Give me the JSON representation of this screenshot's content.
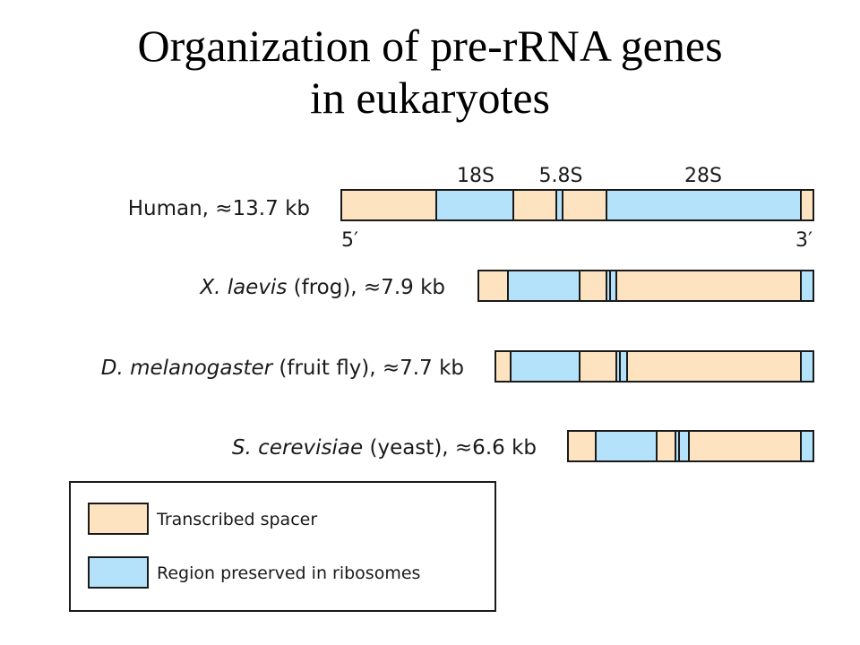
{
  "title": {
    "line1": "Organization of pre-rRNA genes",
    "line2": "in eukaryotes"
  },
  "headers": {
    "h18s": "18S",
    "h58s": "5.8S",
    "h28s": "28S"
  },
  "ends": {
    "five": "5′",
    "three": "3′"
  },
  "colors": {
    "spacer": "#fde3bf",
    "preserved": "#b5e2fb",
    "stroke": "#1a1a1a"
  },
  "genes": [
    {
      "species": "",
      "label_rest": "Human, ≈13.7 kb",
      "segments": [
        "spacer",
        "preserved",
        "spacer",
        "preserved",
        "spacer",
        "preserved",
        "spacer"
      ]
    },
    {
      "species": "X. laevis",
      "label_rest": " (frog), ≈7.9 kb",
      "segments": [
        "spacer",
        "preserved",
        "spacer",
        "preserved",
        "spacer",
        "preserved",
        "spacer"
      ]
    },
    {
      "species": "D. melanogaster",
      "label_rest": " (fruit fly), ≈7.7 kb",
      "segments": [
        "spacer",
        "preserved",
        "spacer",
        "preserved",
        "spacer",
        "preserved",
        "spacer"
      ]
    },
    {
      "species": "S. cerevisiae",
      "label_rest": " (yeast), ≈6.6 kb",
      "segments": [
        "spacer",
        "preserved",
        "spacer",
        "preserved",
        "spacer",
        "preserved",
        "spacer"
      ]
    }
  ],
  "legend": {
    "spacer_label": "Transcribed spacer",
    "preserved_label": "Region preserved in ribosomes"
  }
}
